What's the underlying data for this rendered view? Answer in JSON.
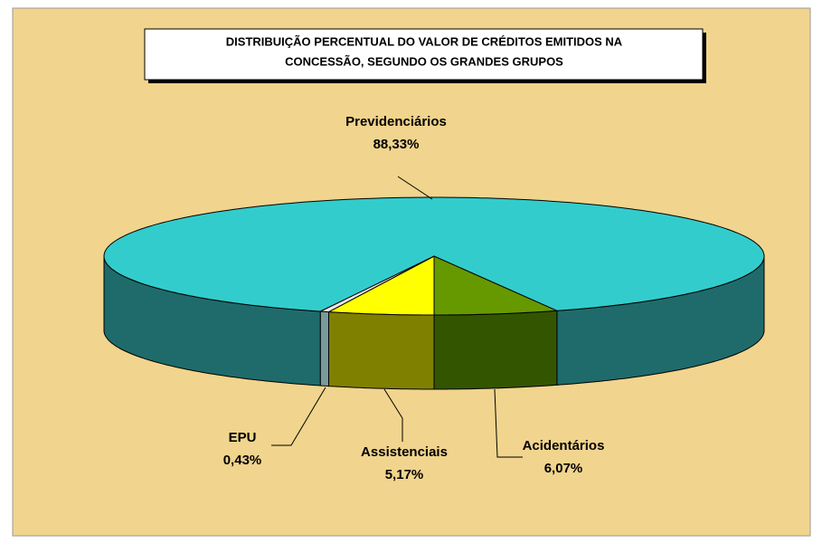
{
  "chart_data": {
    "type": "pie3d",
    "title": [
      "DISTRIBUIÇÃO PERCENTUAL DO VALOR DE CRÉDITOS EMITIDOS NA",
      "CONCESSÃO, SEGUNDO OS GRANDES GRUPOS"
    ],
    "categories": [
      "Assistenciais",
      "EPU",
      "Previdenciários",
      "Acidentários"
    ],
    "values": [
      5.17,
      0.43,
      88.33,
      6.07
    ],
    "value_labels": [
      "5,17%",
      "0,43%",
      "88,33%",
      "6,07%"
    ],
    "colors": [
      "#ffff00",
      "#e8e8e8",
      "#33cccc",
      "#669900"
    ],
    "side_colors": [
      "#808000",
      "#7a9a9a",
      "#1f6b6b",
      "#335500"
    ]
  }
}
